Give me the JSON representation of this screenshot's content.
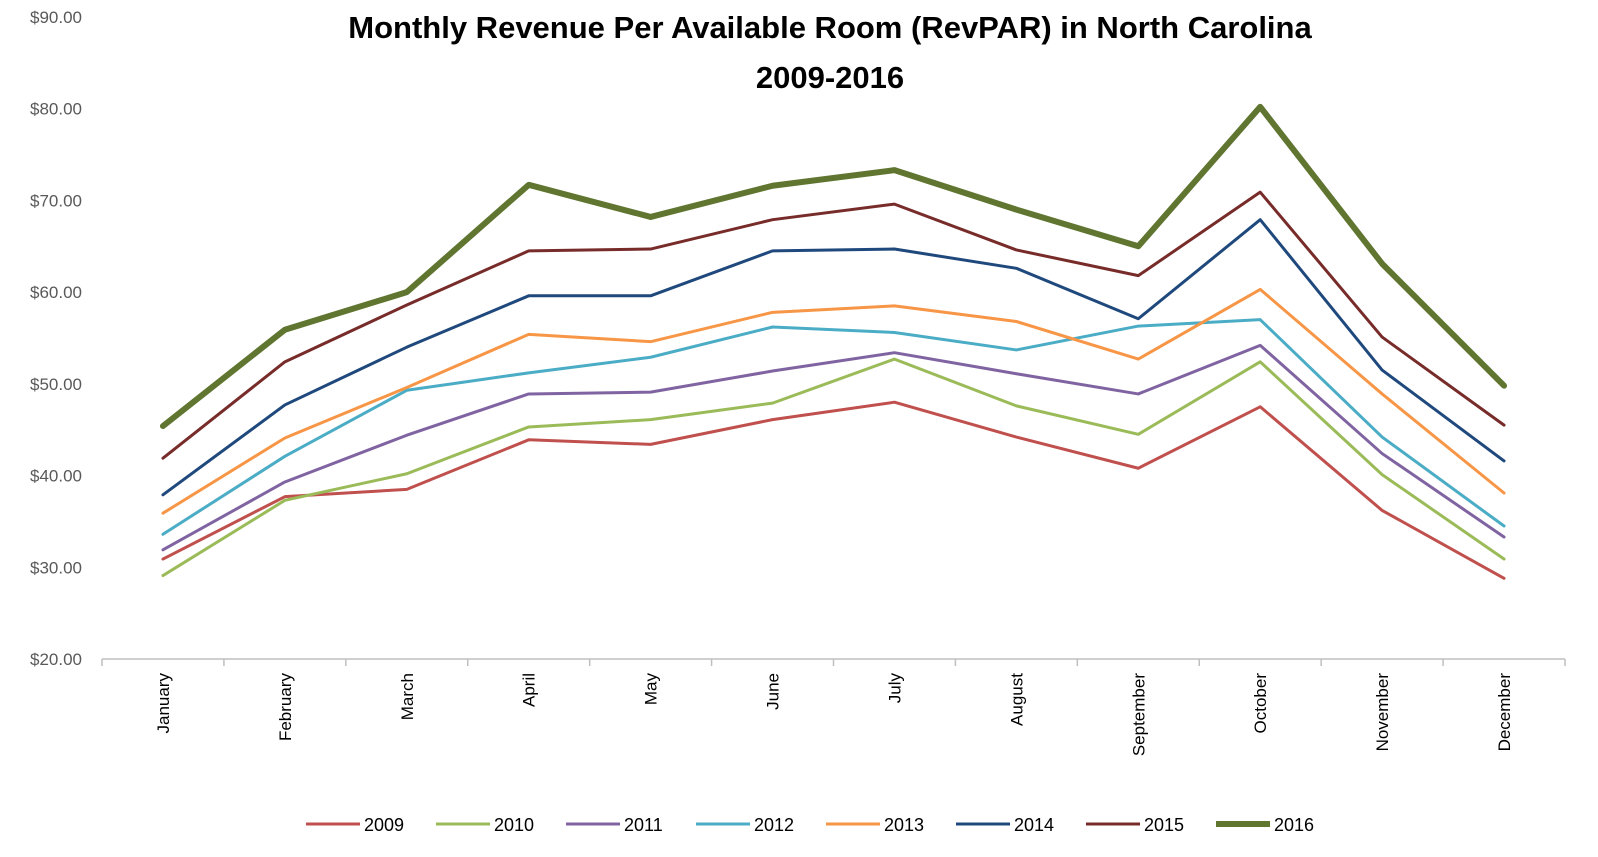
{
  "chart_data": {
    "type": "line",
    "title": "Monthly Revenue Per Available Room (RevPAR) in North Carolina",
    "subtitle": "2009-2016",
    "categories": [
      "January",
      "February",
      "March",
      "April",
      "May",
      "June",
      "July",
      "August",
      "September",
      "October",
      "November",
      "December"
    ],
    "ylim": [
      20,
      90
    ],
    "yticks": [
      {
        "value": 20,
        "label": "$20.00"
      },
      {
        "value": 30,
        "label": "$30.00"
      },
      {
        "value": 40,
        "label": "$40.00"
      },
      {
        "value": 50,
        "label": "$50.00"
      },
      {
        "value": 60,
        "label": "$60.00"
      },
      {
        "value": 70,
        "label": "$70.00"
      },
      {
        "value": 80,
        "label": "$80.00"
      },
      {
        "value": 90,
        "label": "$90.00"
      }
    ],
    "grid": false,
    "legend": "bottom",
    "series": [
      {
        "name": "2009",
        "color": "#c0504d",
        "width": 3,
        "values": [
          30.9,
          37.7,
          38.5,
          43.9,
          43.4,
          46.1,
          48.0,
          44.2,
          40.8,
          47.5,
          36.2,
          28.8
        ]
      },
      {
        "name": "2010",
        "color": "#9bbb59",
        "width": 3,
        "values": [
          29.1,
          37.3,
          40.2,
          45.3,
          46.1,
          47.9,
          52.7,
          47.6,
          44.5,
          52.4,
          40.1,
          30.9
        ]
      },
      {
        "name": "2011",
        "color": "#8064a2",
        "width": 3,
        "values": [
          31.9,
          39.3,
          44.4,
          48.9,
          49.1,
          51.4,
          53.4,
          51.1,
          48.9,
          54.2,
          42.4,
          33.3
        ]
      },
      {
        "name": "2012",
        "color": "#4bacc6",
        "width": 3,
        "values": [
          33.6,
          42.1,
          49.3,
          51.2,
          52.9,
          56.2,
          55.6,
          53.7,
          56.3,
          57.0,
          44.2,
          34.5
        ]
      },
      {
        "name": "2013",
        "color": "#f79646",
        "width": 3,
        "values": [
          35.9,
          44.1,
          49.6,
          55.4,
          54.6,
          57.8,
          58.5,
          56.8,
          52.7,
          60.3,
          48.9,
          38.1
        ]
      },
      {
        "name": "2014",
        "color": "#1f497d",
        "width": 3,
        "values": [
          37.9,
          47.7,
          54.0,
          59.6,
          59.6,
          64.5,
          64.7,
          62.6,
          57.1,
          67.9,
          51.5,
          41.6
        ]
      },
      {
        "name": "2015",
        "color": "#772c2a",
        "width": 3,
        "values": [
          41.9,
          52.4,
          58.6,
          64.5,
          64.7,
          67.9,
          69.6,
          64.6,
          61.8,
          70.9,
          55.1,
          45.5
        ]
      },
      {
        "name": "2016",
        "color": "#5f7530",
        "width": 6,
        "values": [
          45.4,
          55.9,
          60.0,
          71.7,
          68.2,
          71.6,
          73.3,
          69.0,
          65.0,
          80.2,
          63.1,
          49.8
        ]
      }
    ]
  }
}
